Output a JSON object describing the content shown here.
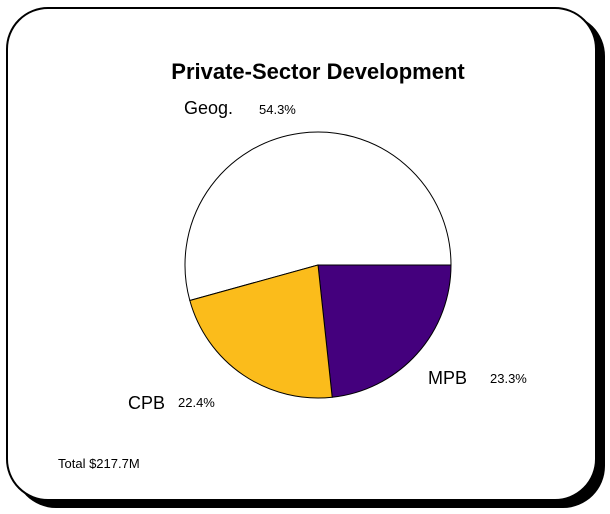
{
  "chart_data": {
    "type": "pie",
    "title": "Private-Sector Development",
    "total_label": "Total $217.7M",
    "slices": [
      {
        "label": "Geog.",
        "value": 54.3,
        "value_label": "54.3%",
        "color": "#ffffff"
      },
      {
        "label": "MPB",
        "value": 23.3,
        "value_label": "23.3%",
        "color": "#44007d"
      },
      {
        "label": "CPB",
        "value": 22.4,
        "value_label": "22.4%",
        "color": "#fbbc1b"
      }
    ]
  }
}
